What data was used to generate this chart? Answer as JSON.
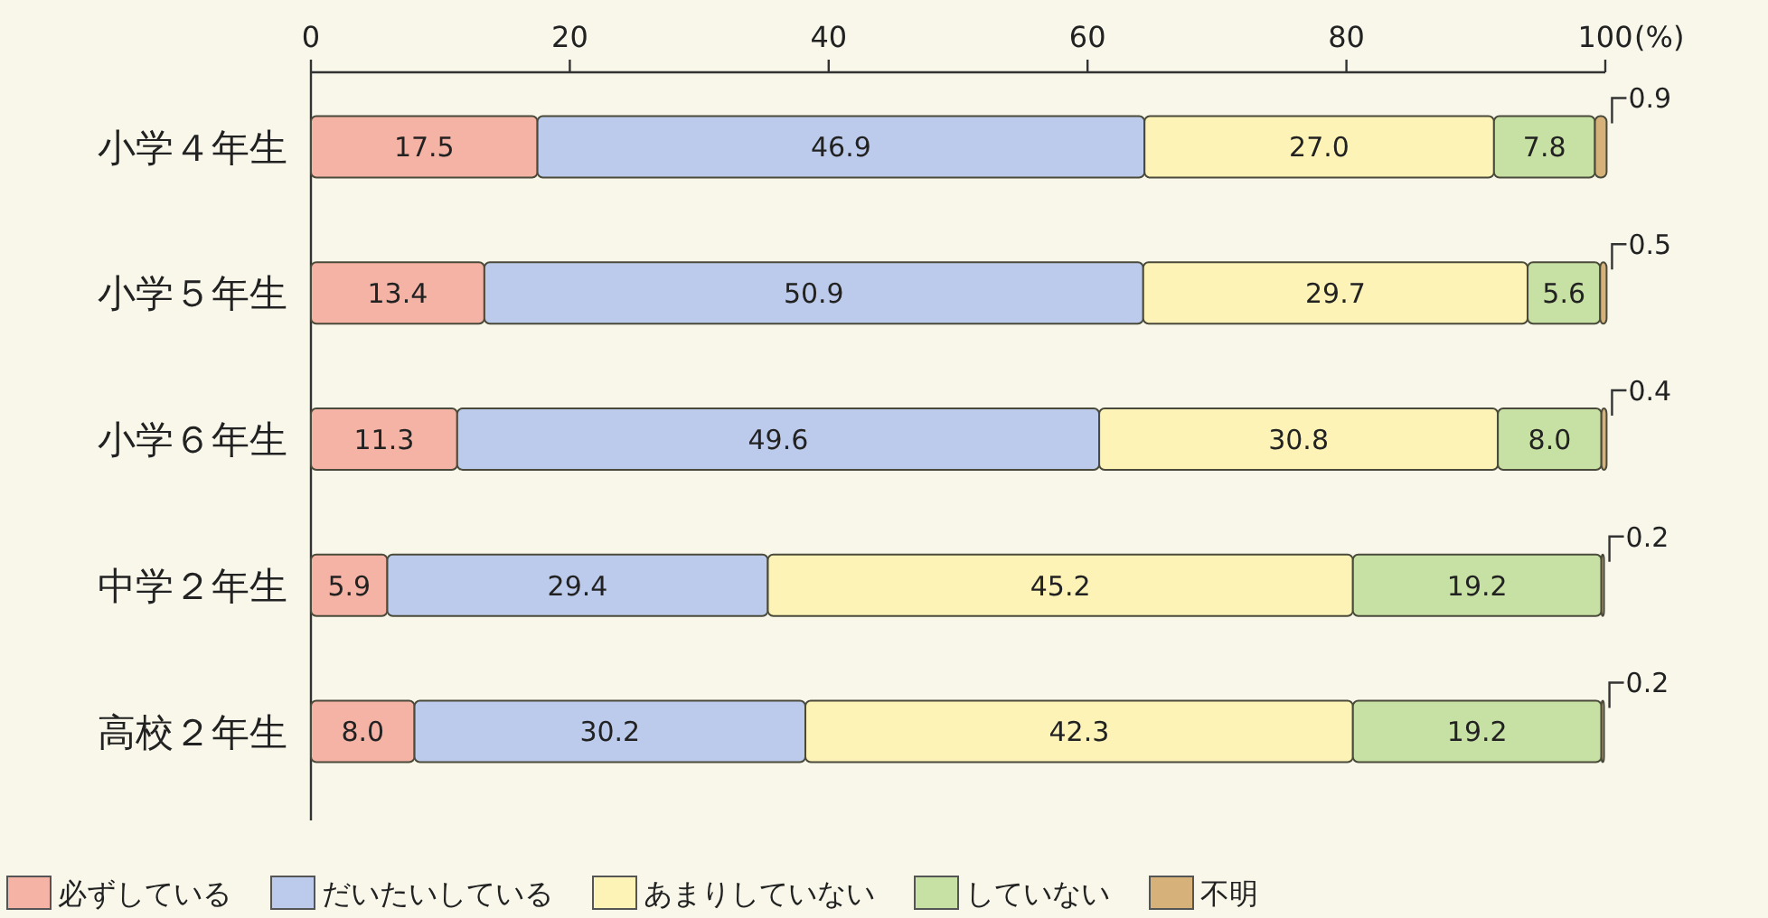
{
  "chart_data": {
    "type": "bar",
    "orientation": "horizontal",
    "stacked": true,
    "categories": [
      "小学４年生",
      "小学５年生",
      "小学６年生",
      "中学２年生",
      "高校２年生"
    ],
    "series": [
      {
        "name": "必ずしている",
        "color": "#f4b3a4",
        "values": [
          17.5,
          13.4,
          11.3,
          5.9,
          8.0
        ],
        "value_labels": [
          "17.5",
          "13.4",
          "11.3",
          "5.9",
          "8.0"
        ]
      },
      {
        "name": "だいたいしている",
        "color": "#bccbeb",
        "values": [
          46.9,
          50.9,
          49.6,
          29.4,
          30.2
        ],
        "value_labels": [
          "46.9",
          "50.9",
          "49.6",
          "29.4",
          "30.2"
        ]
      },
      {
        "name": "あまりしていない",
        "color": "#fdf3b6",
        "values": [
          27.0,
          29.7,
          30.8,
          45.2,
          42.3
        ],
        "value_labels": [
          "27.0",
          "29.7",
          "30.8",
          "45.2",
          "42.3"
        ]
      },
      {
        "name": "していない",
        "color": "#c7e0a4",
        "values": [
          7.8,
          5.6,
          8.0,
          19.2,
          19.2
        ],
        "value_labels": [
          "7.8",
          "5.6",
          "8.0",
          "19.2",
          "19.2"
        ]
      },
      {
        "name": "不明",
        "color": "#d6b27a",
        "values": [
          0.9,
          0.5,
          0.4,
          0.2,
          0.2
        ],
        "value_labels": [
          "0.9",
          "0.5",
          "0.4",
          "0.2",
          "0.2"
        ]
      }
    ],
    "xlim": [
      0,
      100
    ],
    "xticks": [
      0,
      20,
      40,
      60,
      80,
      100
    ],
    "xlabel": "(%)",
    "legend": "bottom left",
    "grid": false
  }
}
